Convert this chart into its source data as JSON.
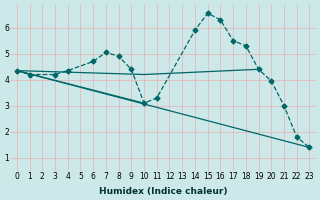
{
  "background_color": "#cce8e8",
  "grid_color": "#e8b0b0",
  "line_color": "#006666",
  "xlabel": "Humidex (Indice chaleur)",
  "ylim": [
    0.5,
    6.9
  ],
  "xlim": [
    -0.5,
    23.5
  ],
  "yticks": [
    1,
    2,
    3,
    4,
    5,
    6
  ],
  "xticks": [
    0,
    1,
    2,
    3,
    4,
    5,
    6,
    7,
    8,
    9,
    10,
    11,
    12,
    13,
    14,
    15,
    16,
    17,
    18,
    19,
    20,
    21,
    22,
    23
  ],
  "line1_x": [
    0,
    1,
    3,
    4,
    6,
    7,
    8,
    9,
    10,
    11,
    14,
    15,
    16,
    17,
    18,
    19,
    20,
    21,
    22,
    23
  ],
  "line1_y": [
    4.35,
    4.2,
    4.2,
    4.35,
    4.7,
    5.05,
    4.9,
    4.4,
    3.1,
    3.3,
    5.9,
    6.55,
    6.3,
    5.5,
    5.3,
    4.4,
    3.95,
    3.0,
    1.8,
    1.4
  ],
  "line2_x": [
    0,
    10,
    19
  ],
  "line2_y": [
    4.35,
    4.2,
    4.4
  ],
  "line3_x": [
    0,
    23
  ],
  "line3_y": [
    4.35,
    1.4
  ],
  "line4_x": [
    0,
    10
  ],
  "line4_y": [
    4.35,
    3.1
  ],
  "tick_fontsize": 5.5,
  "xlabel_fontsize": 6.5,
  "marker_size": 2.5,
  "line_width": 0.9
}
